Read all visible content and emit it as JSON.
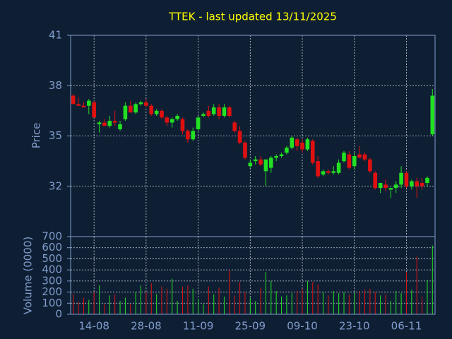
{
  "chart_data": {
    "type": "candlestick",
    "title": "TTEK - last updated 13/11/2025",
    "ylabel": "Price",
    "up_color": "#22e022",
    "down_color": "#e01010",
    "grid": true,
    "ylim": [
      29,
      41
    ],
    "yticks": [
      32,
      35,
      38,
      41
    ],
    "categories": [
      null,
      null,
      null,
      null,
      "14-08",
      null,
      null,
      null,
      null,
      null,
      null,
      null,
      null,
      null,
      "28-08",
      null,
      null,
      null,
      null,
      null,
      null,
      null,
      null,
      null,
      "11-09",
      null,
      null,
      null,
      null,
      null,
      null,
      null,
      null,
      null,
      "25-09",
      null,
      null,
      null,
      null,
      null,
      null,
      null,
      null,
      null,
      "09-10",
      null,
      null,
      null,
      null,
      null,
      null,
      null,
      null,
      null,
      "23-10",
      null,
      null,
      null,
      null,
      null,
      null,
      null,
      null,
      null,
      "06-11",
      null,
      null,
      null,
      null,
      null
    ],
    "open": [
      37.4,
      36.9,
      36.8,
      36.8,
      37.0,
      35.7,
      35.8,
      35.6,
      35.9,
      35.4,
      36.0,
      36.8,
      36.4,
      36.9,
      37.0,
      36.8,
      36.3,
      36.5,
      36.1,
      35.8,
      36.0,
      36.0,
      35.3,
      34.8,
      35.4,
      36.2,
      36.5,
      36.3,
      36.7,
      36.2,
      36.7,
      35.8,
      35.3,
      34.6,
      33.2,
      33.5,
      33.6,
      32.9,
      33.1,
      33.7,
      33.8,
      34.0,
      34.3,
      34.8,
      34.6,
      34.2,
      34.7,
      33.5,
      32.7,
      32.9,
      32.8,
      32.8,
      33.5,
      33.9,
      33.2,
      33.9,
      33.9,
      33.6,
      32.8,
      31.9,
      32.1,
      31.8,
      31.9,
      32.1,
      32.8,
      32.0,
      32.3,
      32.2,
      32.2,
      35.1
    ],
    "high": [
      37.5,
      37.3,
      37.0,
      37.2,
      37.1,
      35.9,
      36.0,
      36.2,
      36.5,
      35.9,
      37.0,
      37.1,
      37.0,
      37.1,
      37.2,
      36.9,
      36.6,
      36.6,
      36.2,
      36.1,
      36.3,
      36.1,
      35.4,
      35.5,
      36.2,
      36.4,
      36.8,
      36.9,
      36.9,
      36.9,
      36.8,
      35.9,
      35.6,
      34.7,
      33.6,
      33.8,
      33.8,
      33.6,
      33.8,
      33.9,
      34.0,
      34.4,
      35.0,
      34.9,
      34.8,
      34.9,
      34.8,
      33.8,
      33.0,
      33.0,
      33.2,
      33.6,
      34.1,
      34.1,
      34.0,
      34.4,
      34.0,
      33.7,
      32.9,
      32.2,
      32.4,
      31.9,
      32.3,
      33.2,
      32.9,
      32.4,
      32.5,
      32.5,
      32.6,
      37.8
    ],
    "low": [
      36.9,
      36.8,
      36.7,
      36.3,
      36.1,
      35.2,
      35.6,
      35.5,
      35.6,
      35.3,
      35.9,
      36.4,
      36.3,
      36.8,
      36.7,
      36.2,
      36.2,
      36.0,
      35.6,
      35.5,
      35.9,
      35.1,
      34.6,
      34.7,
      35.3,
      36.1,
      36.1,
      36.2,
      36.0,
      36.1,
      36.1,
      35.2,
      34.5,
      33.6,
      33.1,
      33.3,
      33.2,
      32.0,
      32.8,
      33.5,
      33.7,
      33.9,
      34.2,
      34.1,
      34.0,
      34.1,
      33.3,
      32.5,
      32.6,
      32.7,
      32.7,
      32.7,
      33.4,
      33.0,
      33.0,
      33.7,
      33.5,
      32.8,
      31.8,
      31.6,
      31.7,
      31.3,
      31.6,
      31.9,
      31.9,
      31.8,
      31.3,
      31.8,
      32.0,
      35.0
    ],
    "close": [
      36.9,
      36.8,
      36.7,
      37.1,
      36.1,
      35.8,
      35.6,
      35.9,
      35.8,
      35.7,
      36.8,
      36.4,
      36.9,
      37.0,
      36.8,
      36.3,
      36.5,
      36.1,
      35.8,
      36.0,
      36.2,
      35.3,
      34.8,
      35.3,
      36.1,
      36.3,
      36.2,
      36.7,
      36.2,
      36.7,
      36.2,
      35.3,
      34.6,
      33.7,
      33.4,
      33.6,
      33.3,
      33.6,
      33.7,
      33.8,
      33.9,
      34.3,
      34.9,
      34.4,
      34.2,
      34.8,
      33.4,
      32.6,
      32.9,
      32.8,
      32.9,
      33.4,
      34.0,
      33.1,
      33.8,
      33.7,
      33.6,
      32.9,
      31.9,
      32.2,
      31.9,
      31.9,
      32.1,
      32.8,
      32.0,
      32.3,
      32.0,
      32.0,
      32.5,
      37.4
    ],
    "volume": {
      "ylabel": "Volume (0000)",
      "ylim": [
        0,
        700
      ],
      "yticks": [
        0,
        100,
        200,
        300,
        400,
        500,
        600,
        700
      ],
      "values": [
        180,
        110,
        150,
        130,
        200,
        260,
        90,
        170,
        180,
        120,
        150,
        90,
        200,
        260,
        200,
        280,
        180,
        250,
        230,
        320,
        120,
        250,
        260,
        230,
        140,
        90,
        250,
        180,
        240,
        160,
        400,
        170,
        290,
        200,
        150,
        120,
        240,
        380,
        300,
        210,
        160,
        170,
        190,
        210,
        230,
        300,
        290,
        270,
        200,
        170,
        210,
        190,
        200,
        180,
        200,
        210,
        220,
        230,
        200,
        170,
        180,
        120,
        210,
        190,
        380,
        220,
        520,
        160,
        310,
        620
      ]
    }
  }
}
